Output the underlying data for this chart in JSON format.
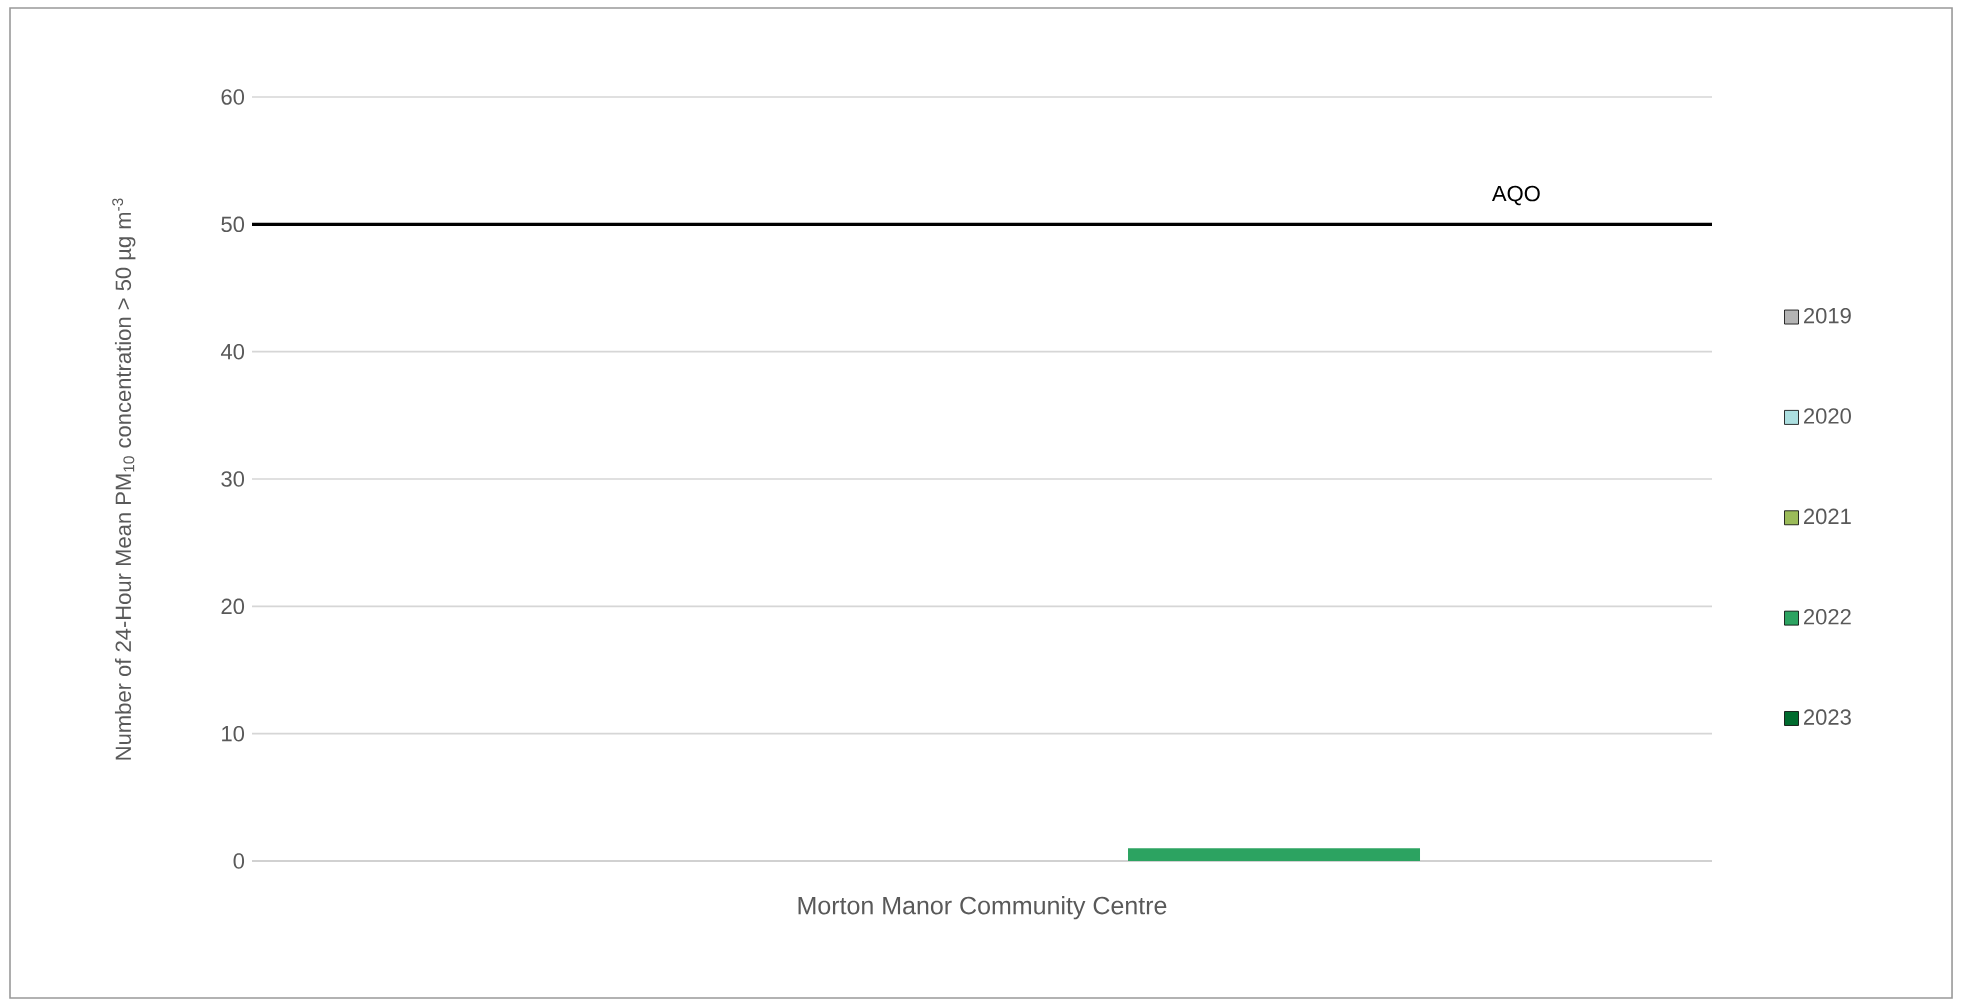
{
  "chart_data": {
    "type": "bar",
    "ylabel": "Number of 24-Hour Mean  PM$_{10}$ concentration > 50 µg m$^{-3}$",
    "categories": [
      "Morton Manor Community Centre"
    ],
    "series": [
      {
        "name": "2019",
        "color": "#b4b4b4",
        "values": [
          0
        ]
      },
      {
        "name": "2020",
        "color": "#acdfe0",
        "values": [
          0
        ]
      },
      {
        "name": "2021",
        "color": "#9bbb59",
        "values": [
          0
        ]
      },
      {
        "name": "2022",
        "color": "#2ca361",
        "values": [
          1
        ]
      },
      {
        "name": "2023",
        "color": "#006b2e",
        "values": [
          0
        ]
      }
    ],
    "ylim": [
      0,
      60
    ],
    "yticks": [
      0,
      10,
      20,
      30,
      40,
      50,
      60
    ],
    "grid": "y",
    "legend": "right",
    "ref_lines": [
      {
        "axis": "y",
        "value": 50,
        "label": "AQO",
        "color": "#000000"
      }
    ]
  }
}
